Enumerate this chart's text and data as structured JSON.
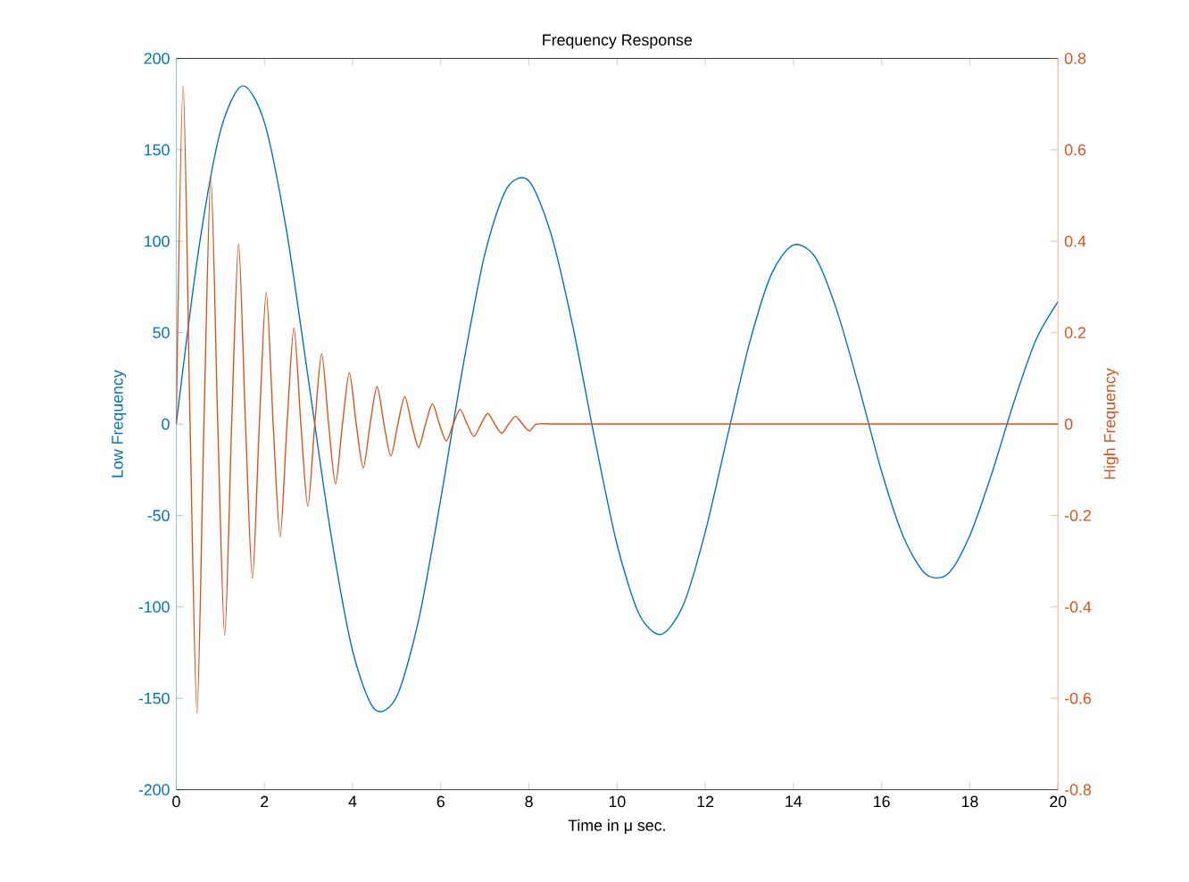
{
  "chart_data": {
    "type": "line",
    "title": "Frequency Response",
    "xlabel": "Time in μ sec.",
    "ylabel": "Low Frequency",
    "y2label": "High Frequency",
    "xlim": [
      0,
      20
    ],
    "xticks": [
      0,
      2,
      4,
      6,
      8,
      10,
      12,
      14,
      16,
      18,
      20
    ],
    "ylim": [
      -200,
      200
    ],
    "yticks": [
      -200,
      -150,
      -100,
      -50,
      0,
      50,
      100,
      150,
      200
    ],
    "y2lim": [
      -0.8,
      0.8
    ],
    "y2ticks": [
      -0.8,
      -0.6,
      -0.4,
      -0.2,
      0,
      0.2,
      0.4,
      0.6,
      0.8
    ],
    "series": [
      {
        "color": "#0072bd",
        "x": [
          0,
          0.5,
          1,
          1.5,
          2,
          2.5,
          3,
          3.5,
          4,
          4.5,
          5,
          5.5,
          6,
          6.5,
          7,
          7.5,
          8,
          8.5,
          9,
          9.5,
          10,
          10.5,
          11,
          11.5,
          12,
          12.5,
          13,
          13.5,
          14,
          14.5,
          15,
          15.5,
          16,
          16.5,
          17,
          17.5,
          18,
          18.5,
          19,
          19.5,
          20
        ],
        "values": [
          0,
          94,
          160,
          185,
          165,
          106,
          24,
          -59,
          -124,
          -156,
          -149,
          -107,
          -41,
          31,
          93,
          129,
          133,
          104,
          53,
          -9,
          -66,
          -104,
          -115,
          -99,
          -59,
          -7,
          44,
          82,
          98,
          91,
          61,
          19,
          -26,
          -62,
          -82,
          -82,
          -61,
          -27,
          12,
          46,
          67
        ]
      },
      {
        "color": "#d95319",
        "axis": "y2",
        "x": [
          0,
          0.157,
          0.314,
          0.471,
          0.628,
          0.785,
          0.942,
          1.1,
          1.257,
          1.414,
          1.571,
          1.728,
          1.885,
          2.042,
          2.199,
          2.356,
          2.513,
          2.67,
          2.827,
          2.985,
          3.142,
          3.299,
          3.456,
          3.613,
          3.77,
          3.927,
          4.084,
          4.241,
          4.398,
          4.555,
          4.712,
          4.869,
          5.027,
          5.184,
          5.341,
          5.498,
          5.655,
          5.812,
          5.969,
          6.126,
          6.283,
          6.44,
          6.597,
          6.754,
          6.912,
          7.069,
          7.226,
          7.383,
          7.54,
          7.697,
          7.854,
          8.011,
          8.168,
          8.5,
          9,
          10,
          14,
          20
        ],
        "values": [
          0,
          0.74,
          0,
          -0.632,
          0,
          0.54,
          0,
          -0.462,
          0,
          0.394,
          0,
          -0.337,
          0,
          0.288,
          0,
          -0.246,
          0,
          0.21,
          0,
          -0.18,
          0,
          0.154,
          0,
          -0.131,
          0,
          0.112,
          0,
          -0.096,
          0,
          0.082,
          0,
          -0.07,
          0,
          0.06,
          0,
          -0.051,
          0,
          0.044,
          0,
          -0.037,
          0,
          0.032,
          0,
          -0.027,
          0,
          0.023,
          0,
          -0.02,
          0,
          0.017,
          0,
          -0.015,
          0,
          0,
          0,
          0,
          0,
          0
        ]
      }
    ]
  }
}
